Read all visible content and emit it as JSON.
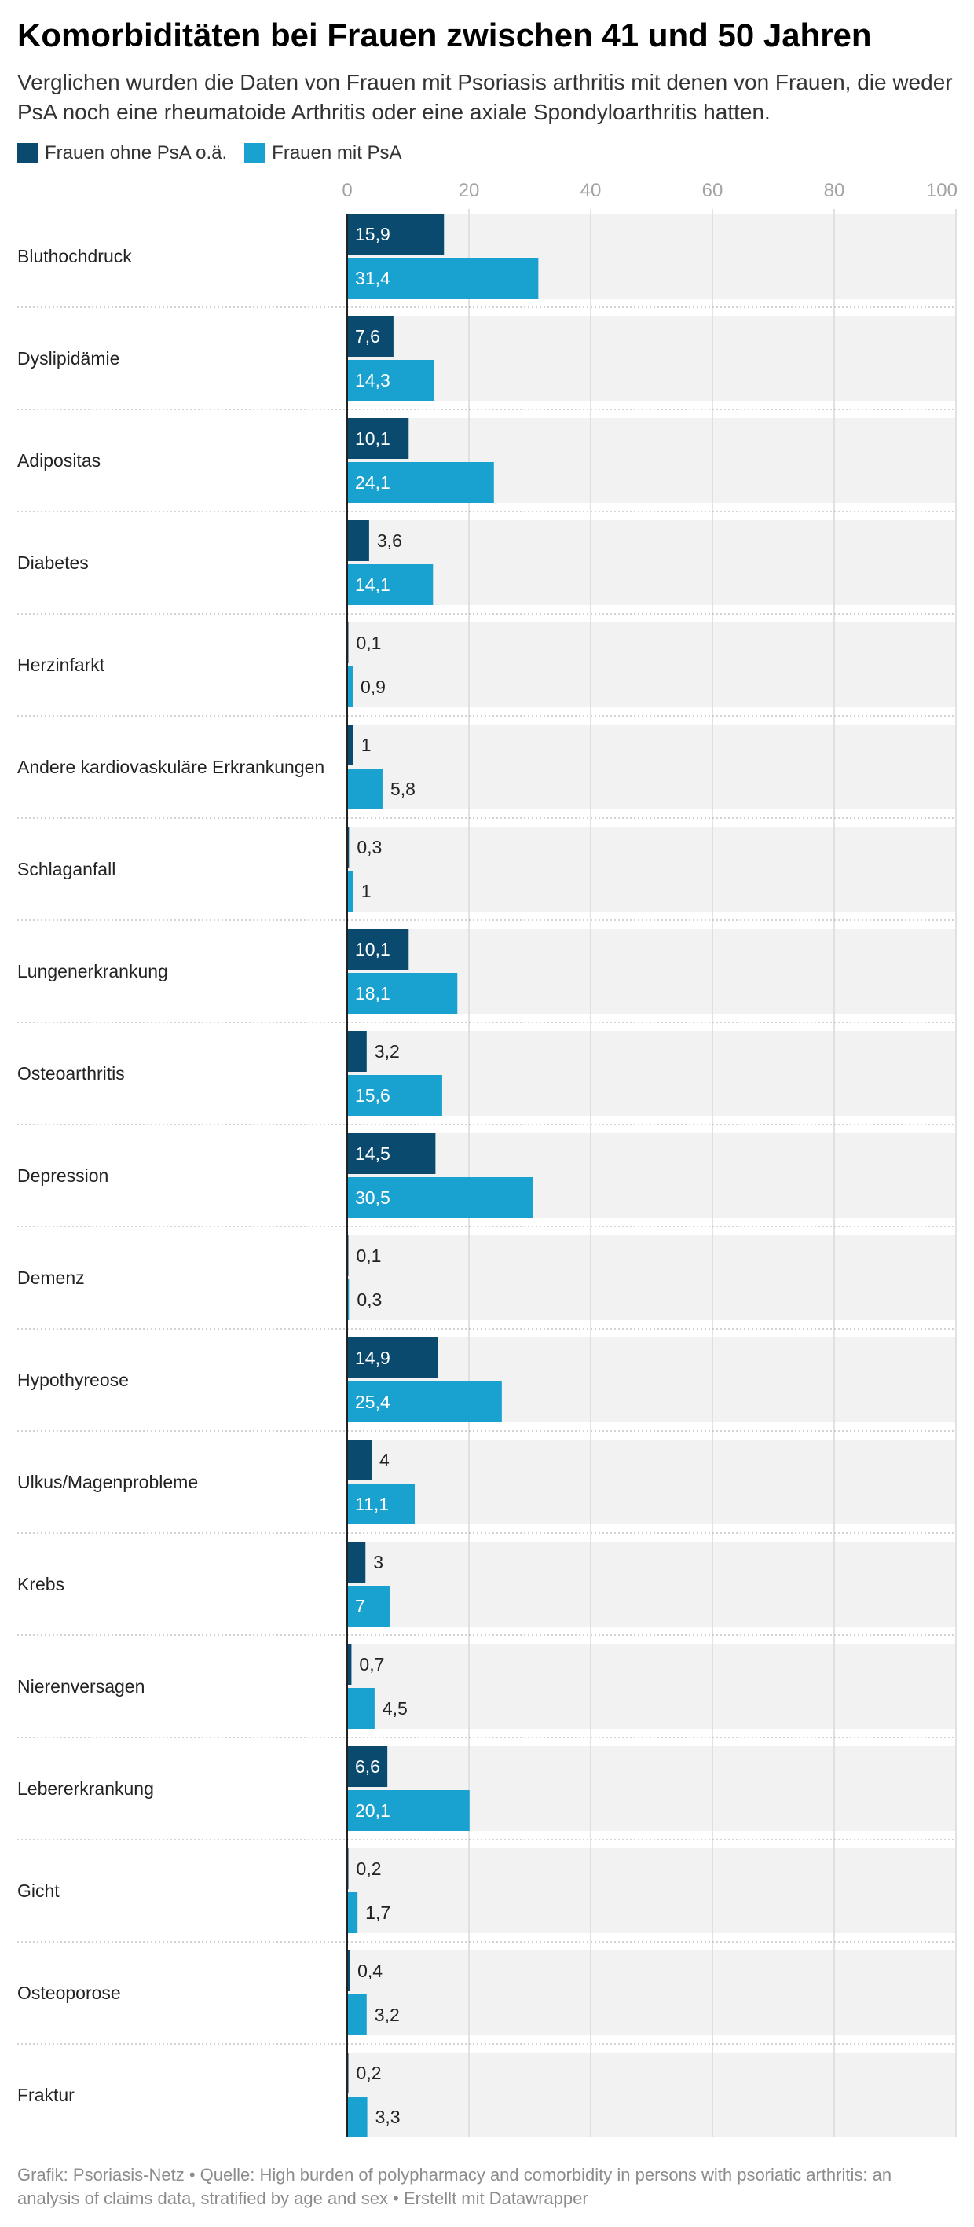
{
  "title": "Komorbiditäten bei Frauen zwischen 41 und 50 Jahren",
  "subtitle": "Verglichen wurden die Daten von Frauen mit Psoriasis arthritis mit denen von Frauen, die weder PsA noch eine rheumatoide Arthritis oder eine axiale Spondyloarthritis hatten.",
  "footer": "Grafik: Psoriasis-Netz • Quelle: High burden of polypharmacy and comorbidity in persons with psoriatic arthritis: an analysis of claims data, stratified by age and sex • Erstellt mit Datawrapper",
  "colors": {
    "series_dark": "#0b4a6f",
    "series_light": "#19a1cf",
    "row_background": "#f2f2f2",
    "gridline": "#d9d9d9",
    "axis_text": "#a3a3a3"
  },
  "chart_data": {
    "type": "bar",
    "orientation": "horizontal",
    "xlim": [
      0,
      100
    ],
    "x_ticks": [
      0,
      20,
      40,
      60,
      80,
      100
    ],
    "tick_labels": [
      "0",
      "20",
      "40",
      "60",
      "80",
      "100"
    ],
    "grid": true,
    "legend": "top-left",
    "categories": [
      "Bluthochdruck",
      "Dyslipidämie",
      "Adipositas",
      "Diabetes",
      "Herzinfarkt",
      "Andere kardiovaskuläre Erkrankungen",
      "Schlaganfall",
      "Lungenerkrankung",
      "Osteoarthritis",
      "Depression",
      "Demenz",
      "Hypothyreose",
      "Ulkus/Magenprobleme",
      "Krebs",
      "Nierenversagen",
      "Lebererkrankung",
      "Gicht",
      "Osteoporose",
      "Fraktur"
    ],
    "series": [
      {
        "name": "Frauen ohne PsA o.ä.",
        "values": [
          15.9,
          7.6,
          10.1,
          3.6,
          0.1,
          1,
          0.3,
          10.1,
          3.2,
          14.5,
          0.1,
          14.9,
          4,
          3,
          0.7,
          6.6,
          0.2,
          0.4,
          0.2
        ],
        "labels": [
          "15,9",
          "7,6",
          "10,1",
          "3,6",
          "0,1",
          "1",
          "0,3",
          "10,1",
          "3,2",
          "14,5",
          "0,1",
          "14,9",
          "4",
          "3",
          "0,7",
          "6,6",
          "0,2",
          "0,4",
          "0,2"
        ]
      },
      {
        "name": "Frauen mit PsA",
        "values": [
          31.4,
          14.3,
          24.1,
          14.1,
          0.9,
          5.8,
          1,
          18.1,
          15.6,
          30.5,
          0.3,
          25.4,
          11.1,
          7,
          4.5,
          20.1,
          1.7,
          3.2,
          3.3
        ],
        "labels": [
          "31,4",
          "14,3",
          "24,1",
          "14,1",
          "0,9",
          "5,8",
          "1",
          "18,1",
          "15,6",
          "30,5",
          "0,3",
          "25,4",
          "11,1",
          "7",
          "4,5",
          "20,1",
          "1,7",
          "3,2",
          "3,3"
        ]
      }
    ]
  }
}
